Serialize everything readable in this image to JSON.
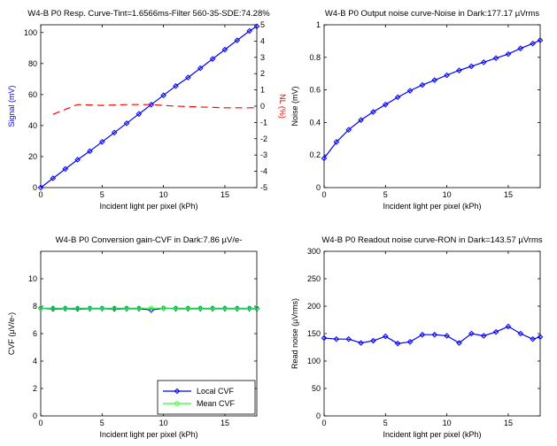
{
  "figure": {
    "background": "#ffffff"
  },
  "chart_data": [
    {
      "id": "resp",
      "type": "line",
      "title": "W4-B  P0 Resp. Curve-Tint=1.6566ms-Filter 560-35-SDE:74.28%",
      "xlabel": "Incident light per pixel (kPh)",
      "ylabel": "Signal (mV)",
      "y2label": "NL (%)",
      "xlim": [
        0,
        17.6
      ],
      "ylim": [
        0,
        105
      ],
      "y2lim": [
        -5,
        5
      ],
      "xticks": [
        0,
        5,
        10,
        15
      ],
      "yticks": [
        0,
        20,
        40,
        60,
        80,
        100
      ],
      "y2ticks": [
        -5,
        -4,
        -3,
        -2,
        -1,
        0,
        1,
        2,
        3,
        4,
        5
      ],
      "series": [
        {
          "color": "#0000ff",
          "marker": "diamond",
          "axis": "left",
          "x": [
            0,
            1,
            2,
            3,
            4,
            5,
            6,
            7,
            8,
            9,
            10,
            11,
            12,
            13,
            14,
            15,
            16,
            17,
            17.6
          ],
          "y": [
            0,
            6,
            12,
            18,
            23.5,
            29.5,
            35.5,
            41.5,
            47.5,
            53.5,
            59.5,
            65.5,
            71,
            77,
            83,
            89,
            95,
            101,
            104
          ]
        },
        {
          "color": "#ff0000",
          "style": "dashed",
          "axis": "right",
          "x": [
            1,
            1.5,
            2,
            2.5,
            3,
            5,
            7,
            9,
            11,
            13,
            15,
            17.6
          ],
          "y": [
            -0.5,
            -0.35,
            -0.2,
            -0.05,
            0.1,
            0.05,
            0.1,
            0.1,
            0,
            -0.05,
            -0.1,
            -0.1
          ]
        }
      ]
    },
    {
      "id": "noise",
      "type": "line",
      "title": "W4-B  P0  Output noise curve-Noise in Dark:177.17 µVrms",
      "xlabel": "Incident light per pixel (kPh)",
      "ylabel": "Noise (mV)",
      "xlim": [
        0,
        17.6
      ],
      "ylim": [
        0,
        1.0
      ],
      "xticks": [
        0,
        5,
        10,
        15
      ],
      "yticks": [
        0,
        0.2,
        0.4,
        0.6,
        0.8,
        1
      ],
      "series": [
        {
          "color": "#0000ff",
          "marker": "diamond",
          "x": [
            0,
            1,
            2,
            3,
            4,
            5,
            6,
            7,
            8,
            9,
            10,
            11,
            12,
            13,
            14,
            15,
            16,
            17,
            17.6
          ],
          "y": [
            0.18,
            0.28,
            0.355,
            0.415,
            0.465,
            0.51,
            0.555,
            0.595,
            0.63,
            0.66,
            0.69,
            0.72,
            0.745,
            0.77,
            0.795,
            0.82,
            0.855,
            0.885,
            0.905
          ]
        }
      ]
    },
    {
      "id": "cvf",
      "type": "line",
      "title": "W4-B  P0 Conversion gain-CVF in Dark:7.86 µV/e-",
      "xlabel": "Incident light per pixel (kPh)",
      "ylabel": "CVF (µV/e-)",
      "xlim": [
        0,
        17.6
      ],
      "ylim": [
        0,
        12
      ],
      "xticks": [
        0,
        5,
        10,
        15
      ],
      "yticks": [
        0,
        2,
        4,
        6,
        8,
        10
      ],
      "legend": {
        "position": "bottom-right",
        "entries": [
          "Local CVF",
          "Mean CVF"
        ]
      },
      "series": [
        {
          "name": "Local CVF",
          "color": "#0000ff",
          "marker": "diamond",
          "x": [
            0,
            1,
            2,
            3,
            4,
            5,
            6,
            7,
            8,
            9,
            10,
            11,
            12,
            13,
            14,
            15,
            16,
            17,
            17.6
          ],
          "y": [
            7.85,
            7.8,
            7.82,
            7.8,
            7.82,
            7.83,
            7.8,
            7.82,
            7.82,
            7.72,
            7.85,
            7.82,
            7.82,
            7.82,
            7.82,
            7.82,
            7.82,
            7.82,
            7.82
          ]
        },
        {
          "name": "Mean CVF",
          "color": "#33ff33",
          "marker": "circle",
          "x": [
            0,
            1,
            2,
            3,
            4,
            5,
            6,
            7,
            8,
            9,
            10,
            11,
            12,
            13,
            14,
            15,
            16,
            17,
            17.6
          ],
          "y": [
            7.86,
            7.86,
            7.86,
            7.86,
            7.86,
            7.86,
            7.86,
            7.86,
            7.86,
            7.86,
            7.86,
            7.86,
            7.86,
            7.86,
            7.86,
            7.86,
            7.86,
            7.86,
            7.86
          ]
        }
      ]
    },
    {
      "id": "ron",
      "type": "line",
      "title": "W4-B  P0 Readout noise curve-RON in Dark=143.57 µVrms",
      "xlabel": "Incident light per pixel (kPh)",
      "ylabel": "Read noise (µVrms)",
      "xlim": [
        0,
        17.6
      ],
      "ylim": [
        0,
        300
      ],
      "xticks": [
        0,
        5,
        10,
        15
      ],
      "yticks": [
        0,
        50,
        100,
        150,
        200,
        250,
        300
      ],
      "series": [
        {
          "color": "#0000ff",
          "marker": "diamond",
          "x": [
            0,
            1,
            2,
            3,
            4,
            5,
            6,
            7,
            8,
            9,
            10,
            11,
            12,
            13,
            14,
            15,
            16,
            17,
            17.6
          ],
          "y": [
            142,
            140,
            140,
            133,
            137,
            145,
            132,
            135,
            148,
            148,
            146,
            133,
            150,
            146,
            153,
            163,
            150,
            140,
            144
          ]
        }
      ]
    }
  ]
}
